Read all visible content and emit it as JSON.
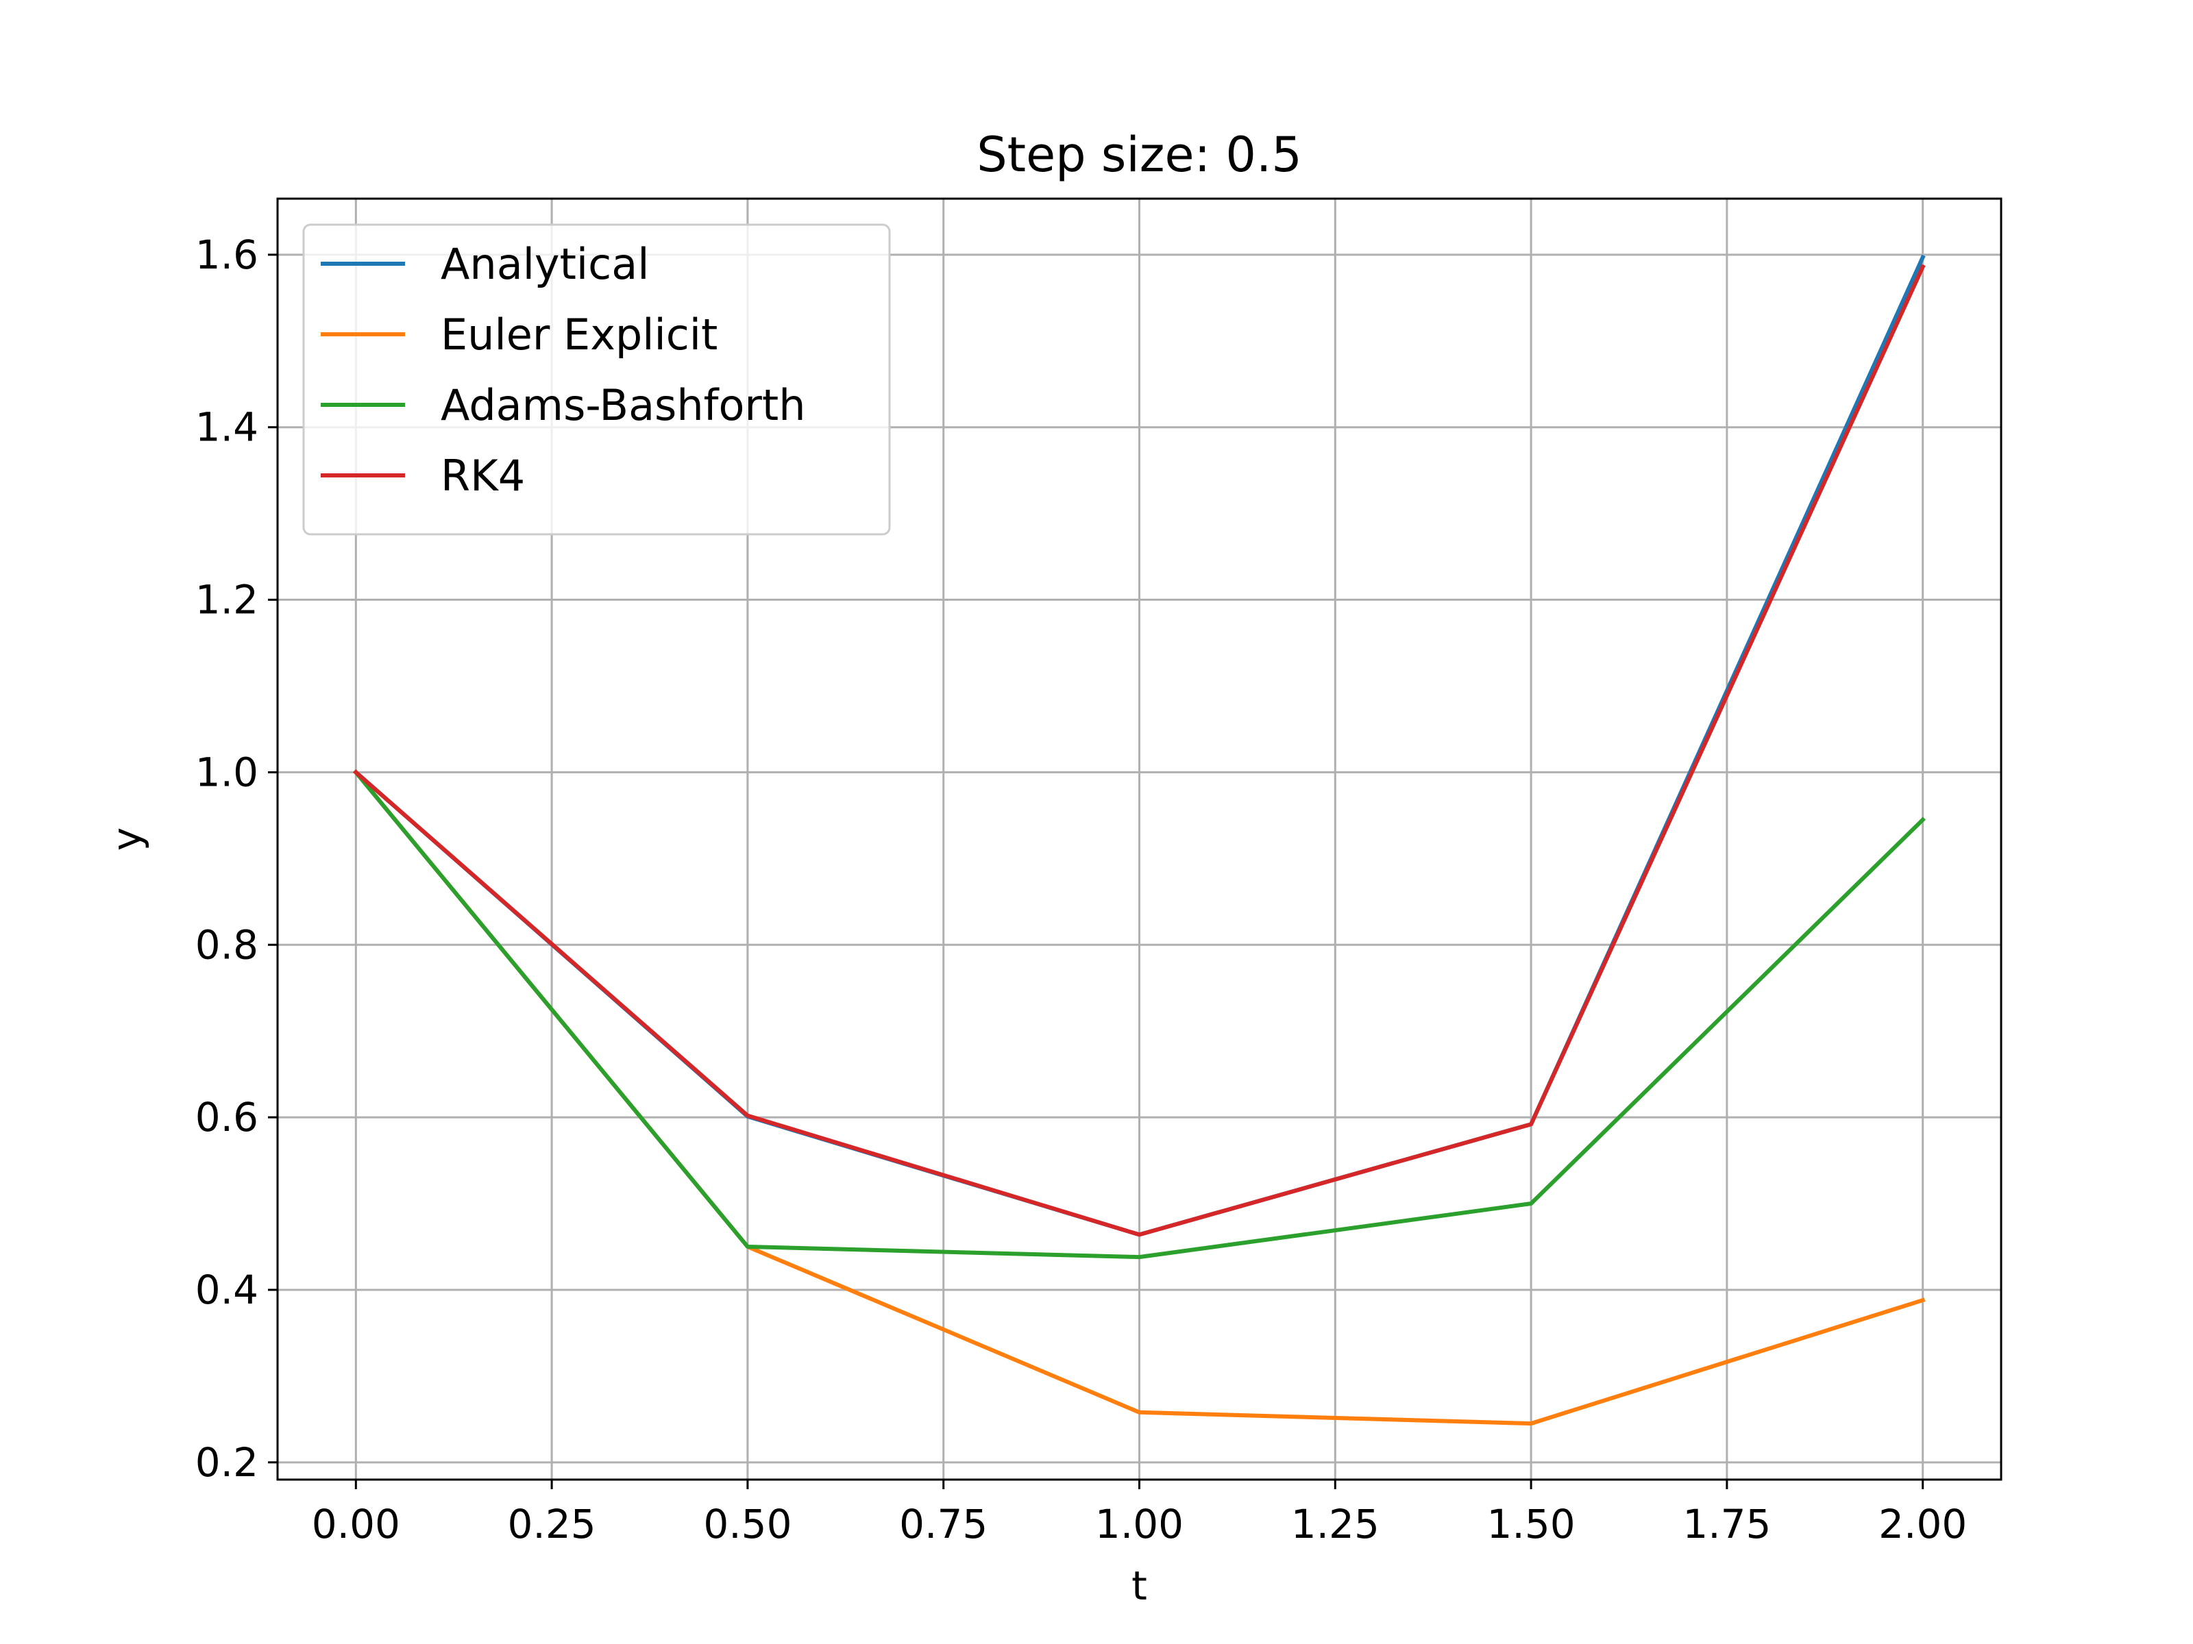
{
  "chart_data": {
    "type": "line",
    "title": "Step size: 0.5",
    "xlabel": "t",
    "ylabel": "y",
    "x": [
      0.0,
      0.5,
      1.0,
      1.5,
      2.0
    ],
    "xlim": [
      -0.1,
      2.1
    ],
    "ylim": [
      0.18,
      1.665
    ],
    "xticks": [
      0.0,
      0.25,
      0.5,
      0.75,
      1.0,
      1.25,
      1.5,
      1.75,
      2.0
    ],
    "xtick_labels": [
      "0.00",
      "0.25",
      "0.50",
      "0.75",
      "1.00",
      "1.25",
      "1.50",
      "1.75",
      "2.00"
    ],
    "yticks": [
      0.2,
      0.4,
      0.6,
      0.8,
      1.0,
      1.2,
      1.4,
      1.6
    ],
    "ytick_labels": [
      "0.2",
      "0.4",
      "0.6",
      "0.8",
      "1.0",
      "1.2",
      "1.4",
      "1.6"
    ],
    "grid": true,
    "legend_position": "upper-left",
    "series": [
      {
        "name": "Analytical",
        "color": "#1f77b4",
        "values": [
          1.0,
          0.601,
          0.464,
          0.592,
          1.597
        ]
      },
      {
        "name": "Euler Explicit",
        "color": "#ff7f0e",
        "values": [
          1.0,
          0.45,
          0.258,
          0.245,
          0.388
        ]
      },
      {
        "name": "Adams-Bashforth",
        "color": "#2ca02c",
        "values": [
          1.0,
          0.45,
          0.438,
          0.5,
          0.945
        ]
      },
      {
        "name": "RK4",
        "color": "#d62728",
        "values": [
          1.0,
          0.602,
          0.464,
          0.592,
          1.586
        ]
      }
    ]
  }
}
